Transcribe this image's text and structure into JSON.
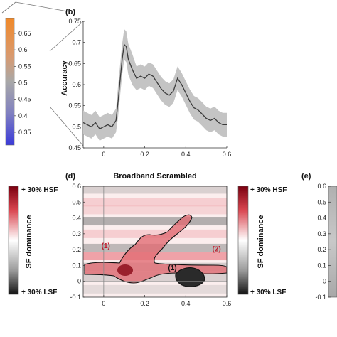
{
  "colors": {
    "hsf": "#b01020",
    "lsf": "#222222",
    "band": "#c4c4c4",
    "line": "#3a3a3a",
    "region_red": "#c0182a"
  },
  "colorbar_left": {
    "ticks": [
      "0.65",
      "0.6",
      "0.55",
      "0.5",
      "0.45",
      "0.4",
      "0.35"
    ],
    "values": [
      0.65,
      0.6,
      0.55,
      0.5,
      0.45,
      0.4,
      0.35
    ]
  },
  "chart_data": [
    {
      "panel": "(b)",
      "type": "line",
      "title": "",
      "xlabel": "",
      "ylabel": "Accuracy",
      "xlim": [
        -0.1,
        0.6
      ],
      "ylim": [
        0.45,
        0.75
      ],
      "xticks": [
        "0",
        "0.2",
        "0.4",
        "0.6"
      ],
      "xtick_values": [
        0,
        0.2,
        0.4,
        0.6
      ],
      "yticks": [
        "0.45",
        "0.5",
        "0.55",
        "0.6",
        "0.65",
        "0.7",
        "0.75"
      ],
      "ytick_values": [
        0.45,
        0.5,
        0.55,
        0.6,
        0.65,
        0.7,
        0.75
      ],
      "series": [
        {
          "x": [
            -0.1,
            -0.08,
            -0.06,
            -0.04,
            -0.02,
            0.0,
            0.02,
            0.04,
            0.06,
            0.07,
            0.08,
            0.09,
            0.1,
            0.11,
            0.12,
            0.14,
            0.16,
            0.18,
            0.2,
            0.22,
            0.24,
            0.26,
            0.28,
            0.3,
            0.32,
            0.34,
            0.36,
            0.38,
            0.4,
            0.42,
            0.44,
            0.46,
            0.48,
            0.5,
            0.52,
            0.54,
            0.56,
            0.58,
            0.6
          ],
          "y": [
            0.51,
            0.505,
            0.5,
            0.51,
            0.495,
            0.5,
            0.505,
            0.5,
            0.515,
            0.56,
            0.61,
            0.66,
            0.695,
            0.69,
            0.66,
            0.635,
            0.615,
            0.62,
            0.615,
            0.625,
            0.62,
            0.605,
            0.59,
            0.58,
            0.575,
            0.585,
            0.615,
            0.6,
            0.58,
            0.56,
            0.545,
            0.54,
            0.53,
            0.52,
            0.515,
            0.52,
            0.51,
            0.505,
            0.505
          ],
          "band_half_width": 0.028
        }
      ]
    },
    {
      "panel": "(d)",
      "type": "heatmap",
      "title": "Broadband Scrambled",
      "xlim": [
        -0.1,
        0.6
      ],
      "ylim": [
        -0.1,
        0.6
      ],
      "xticks": [
        "0",
        "0.2",
        "0.4",
        "0.6"
      ],
      "xtick_values": [
        0,
        0.2,
        0.4,
        0.6
      ],
      "yticks": [
        "0.6",
        "0.5",
        "0.4",
        "0.3",
        "0.2",
        "0.1",
        "0",
        "-0.1"
      ],
      "ytick_values": [
        0.6,
        0.5,
        0.4,
        0.3,
        0.2,
        0.1,
        0,
        -0.1
      ],
      "colorbar": {
        "label": "SF dominance",
        "top_label": "+ 30% HSF",
        "bottom_label": "+ 30% LSF"
      },
      "horizontal_bands": [
        {
          "y": 0.58,
          "tone": "gray",
          "strength": 0.3
        },
        {
          "y": 0.5,
          "tone": "red",
          "strength": 0.25
        },
        {
          "y": 0.45,
          "tone": "red",
          "strength": 0.2
        },
        {
          "y": 0.38,
          "tone": "gray",
          "strength": 0.65
        },
        {
          "y": 0.3,
          "tone": "red",
          "strength": 0.25
        },
        {
          "y": 0.21,
          "tone": "gray",
          "strength": 0.55
        },
        {
          "y": 0.16,
          "tone": "red",
          "strength": 0.6
        },
        {
          "y": 0.09,
          "tone": "gray",
          "strength": 0.35
        },
        {
          "y": 0.03,
          "tone": "gray",
          "strength": 0.3
        },
        {
          "y": -0.05,
          "tone": "gray",
          "strength": 0.2
        }
      ],
      "regions": [
        {
          "label": "(1)",
          "color": "red",
          "label_x": 0.01,
          "label_y": 0.21
        },
        {
          "label": "(2)",
          "color": "red",
          "label_x": 0.55,
          "label_y": 0.19
        },
        {
          "label": "(1)",
          "color": "black",
          "label_x": 0.335,
          "label_y": 0.07
        }
      ]
    },
    {
      "panel": "(e)",
      "type": "heatmap",
      "yticks": [
        "0.6",
        "0.5",
        "0.4",
        "0.3",
        "0.2",
        "0.1",
        "0",
        "-0.1"
      ],
      "ytick_values": [
        0.6,
        0.5,
        0.4,
        0.3,
        0.2,
        0.1,
        0,
        -0.1
      ]
    }
  ]
}
